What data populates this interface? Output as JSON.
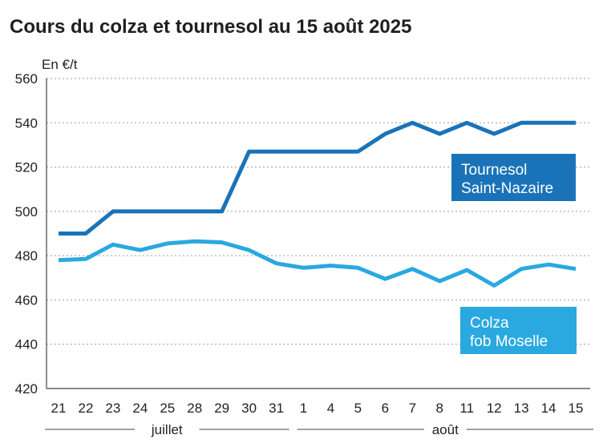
{
  "chart_data": {
    "type": "line",
    "title": "Cours du colza et tournesol au 15 août 2025",
    "ylabel": "En €/t",
    "ylim": [
      420,
      560
    ],
    "yticks": [
      420,
      440,
      460,
      480,
      500,
      520,
      540,
      560
    ],
    "categories": [
      "21",
      "22",
      "23",
      "24",
      "25",
      "28",
      "29",
      "30",
      "31",
      "1",
      "4",
      "5",
      "6",
      "7",
      "8",
      "11",
      "12",
      "13",
      "14",
      "15"
    ],
    "months": [
      {
        "label": "juillet",
        "from": 0,
        "to": 8
      },
      {
        "label": "août",
        "from": 9,
        "to": 19
      }
    ],
    "grid": true,
    "series": [
      {
        "name": "Tournesol Saint-Nazaire",
        "label_lines": [
          "Tournesol",
          "Saint-Nazaire"
        ],
        "color": "#1a73b8",
        "values": [
          490,
          490,
          500,
          500,
          500,
          500,
          500,
          527,
          527,
          527,
          527,
          527,
          535,
          540,
          535,
          540,
          535,
          540,
          540,
          540
        ]
      },
      {
        "name": "Colza fob Moselle",
        "label_lines": [
          "Colza",
          "fob Moselle"
        ],
        "color": "#2aa8e0",
        "values": [
          478,
          478.5,
          485,
          482.5,
          485.5,
          486.5,
          486,
          482.5,
          476.5,
          474.5,
          475.5,
          474.5,
          469.5,
          474,
          468.5,
          473.5,
          466.5,
          474,
          476,
          474
        ]
      }
    ]
  }
}
